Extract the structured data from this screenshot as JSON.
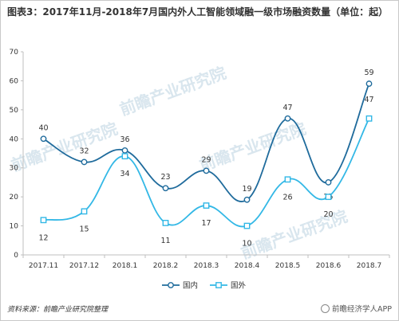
{
  "title": "图表3：2017年11月-2018年7月国内外人工智能领域融一级市场融资数量（单位：起）",
  "source": "资料来源：前瞻产业研究院整理",
  "brand": "前瞻经济学人APP",
  "watermark": "前瞻产业研究院",
  "colors": {
    "domestic": "#1f6b9c",
    "foreign": "#33b8e6",
    "axis": "#bfbfbf"
  },
  "chart_data": {
    "type": "line",
    "categories": [
      "2017.11",
      "2017.12",
      "2018.1",
      "2018.2",
      "2018.3",
      "2018.4",
      "2018.5",
      "2018.6",
      "2018.7"
    ],
    "series": [
      {
        "name": "国内",
        "values": [
          40,
          32,
          36,
          23,
          29,
          19,
          47,
          25,
          59
        ],
        "marker": "circle"
      },
      {
        "name": "国外",
        "values": [
          12,
          15,
          34,
          11,
          17,
          10,
          26,
          20,
          47
        ],
        "marker": "square"
      }
    ],
    "yticks": [
      0,
      10,
      20,
      30,
      40,
      50,
      60,
      70
    ],
    "ylim": [
      0,
      70
    ],
    "smooth": true,
    "legend": "bottom-center",
    "grid": false
  }
}
